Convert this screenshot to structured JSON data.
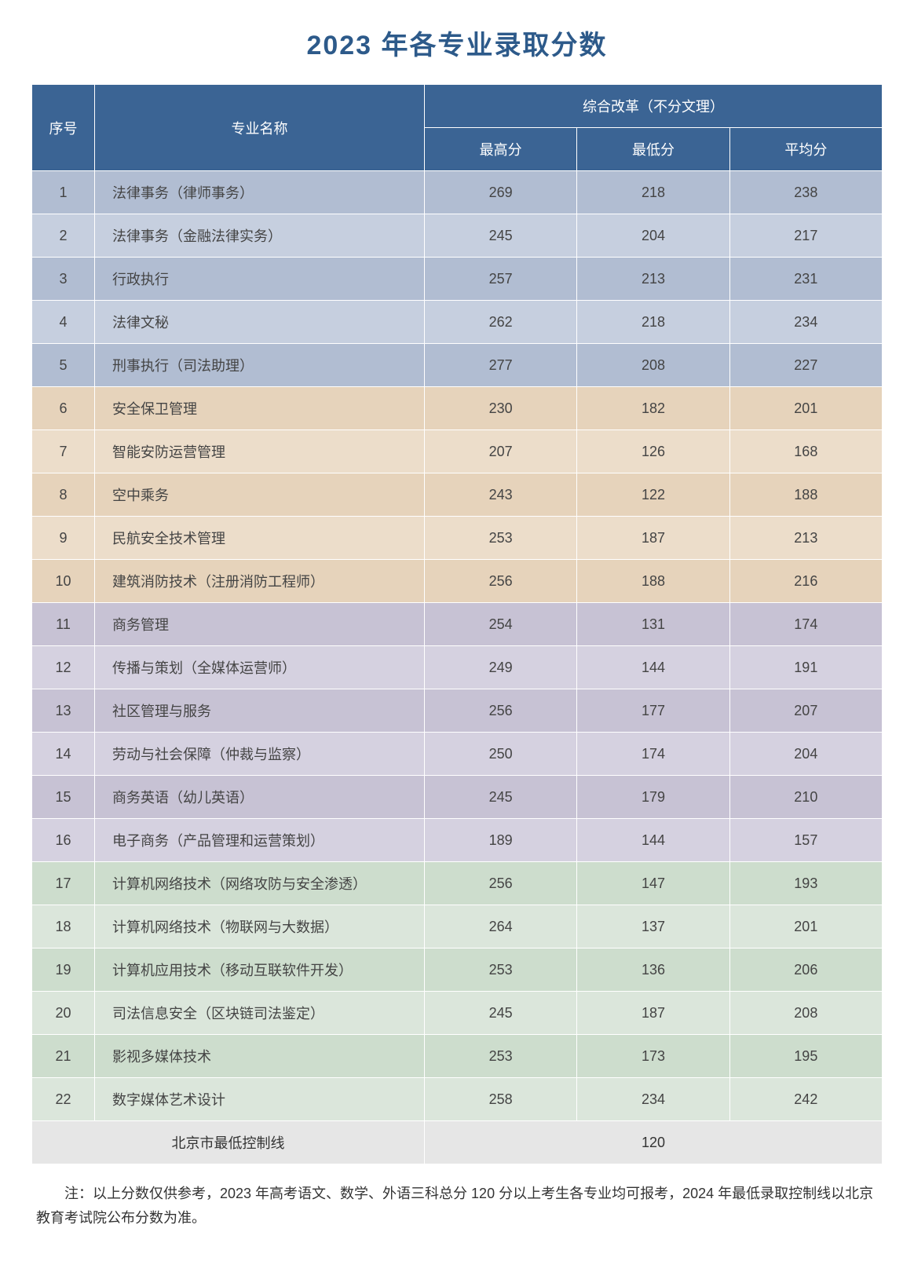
{
  "title": "2023 年各专业录取分数",
  "header": {
    "seq": "序号",
    "major": "专业名称",
    "group": "综合改革（不分文理）",
    "max": "最高分",
    "min": "最低分",
    "avg": "平均分"
  },
  "group_colors": {
    "blue": {
      "odd": "#b1bdd2",
      "even": "#c6cfdf"
    },
    "tan": {
      "odd": "#e6d3bb",
      "even": "#ecddca"
    },
    "purple": {
      "odd": "#c7c2d4",
      "even": "#d5d1e0"
    },
    "green": {
      "odd": "#cdddcd",
      "even": "#dbe6db"
    },
    "gray": {
      "odd": "#e6e6e6",
      "even": "#e6e6e6"
    }
  },
  "rows": [
    {
      "seq": "1",
      "major": "法律事务（律师事务）",
      "max": "269",
      "min": "218",
      "avg": "238",
      "group": "blue"
    },
    {
      "seq": "2",
      "major": "法律事务（金融法律实务）",
      "max": "245",
      "min": "204",
      "avg": "217",
      "group": "blue"
    },
    {
      "seq": "3",
      "major": "行政执行",
      "max": "257",
      "min": "213",
      "avg": "231",
      "group": "blue"
    },
    {
      "seq": "4",
      "major": "法律文秘",
      "max": "262",
      "min": "218",
      "avg": "234",
      "group": "blue"
    },
    {
      "seq": "5",
      "major": "刑事执行（司法助理）",
      "max": "277",
      "min": "208",
      "avg": "227",
      "group": "blue"
    },
    {
      "seq": "6",
      "major": "安全保卫管理",
      "max": "230",
      "min": "182",
      "avg": "201",
      "group": "tan"
    },
    {
      "seq": "7",
      "major": "智能安防运营管理",
      "max": "207",
      "min": "126",
      "avg": "168",
      "group": "tan"
    },
    {
      "seq": "8",
      "major": "空中乘务",
      "max": "243",
      "min": "122",
      "avg": "188",
      "group": "tan"
    },
    {
      "seq": "9",
      "major": "民航安全技术管理",
      "max": "253",
      "min": "187",
      "avg": "213",
      "group": "tan"
    },
    {
      "seq": "10",
      "major": "建筑消防技术（注册消防工程师）",
      "max": "256",
      "min": "188",
      "avg": "216",
      "group": "tan"
    },
    {
      "seq": "11",
      "major": "商务管理",
      "max": "254",
      "min": "131",
      "avg": "174",
      "group": "purple"
    },
    {
      "seq": "12",
      "major": "传播与策划（全媒体运营师）",
      "max": "249",
      "min": "144",
      "avg": "191",
      "group": "purple"
    },
    {
      "seq": "13",
      "major": "社区管理与服务",
      "max": "256",
      "min": "177",
      "avg": "207",
      "group": "purple"
    },
    {
      "seq": "14",
      "major": "劳动与社会保障（仲裁与监察）",
      "max": "250",
      "min": "174",
      "avg": "204",
      "group": "purple"
    },
    {
      "seq": "15",
      "major": "商务英语（幼儿英语）",
      "max": "245",
      "min": "179",
      "avg": "210",
      "group": "purple"
    },
    {
      "seq": "16",
      "major": "电子商务（产品管理和运营策划）",
      "max": "189",
      "min": "144",
      "avg": "157",
      "group": "purple"
    },
    {
      "seq": "17",
      "major": "计算机网络技术（网络攻防与安全渗透）",
      "max": "256",
      "min": "147",
      "avg": "193",
      "group": "green"
    },
    {
      "seq": "18",
      "major": "计算机网络技术（物联网与大数据）",
      "max": "264",
      "min": "137",
      "avg": "201",
      "group": "green"
    },
    {
      "seq": "19",
      "major": "计算机应用技术（移动互联软件开发）",
      "max": "253",
      "min": "136",
      "avg": "206",
      "group": "green"
    },
    {
      "seq": "20",
      "major": "司法信息安全（区块链司法鉴定）",
      "max": "245",
      "min": "187",
      "avg": "208",
      "group": "green"
    },
    {
      "seq": "21",
      "major": "影视多媒体技术",
      "max": "253",
      "min": "173",
      "avg": "195",
      "group": "green"
    },
    {
      "seq": "22",
      "major": "数字媒体艺术设计",
      "max": "258",
      "min": "234",
      "avg": "242",
      "group": "green"
    }
  ],
  "footer": {
    "label": "北京市最低控制线",
    "value": "120"
  },
  "note": "注：以上分数仅供参考，2023 年高考语文、数学、外语三科总分 120 分以上考生各专业均可报考，2024 年最低录取控制线以北京教育考试院公布分数为准。"
}
